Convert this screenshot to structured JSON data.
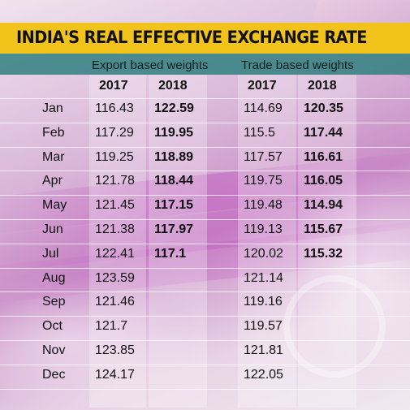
{
  "chart_data": {
    "type": "table",
    "title": "INDIA'S REAL EFFECTIVE EXCHANGE RATE",
    "groups": [
      {
        "name": "Export based weights",
        "years": [
          "2017",
          "2018"
        ]
      },
      {
        "name": "Trade based weights",
        "years": [
          "2017",
          "2018"
        ]
      }
    ],
    "rows": [
      {
        "month": "Jan",
        "export_2017": "116.43",
        "export_2018": "122.59",
        "trade_2017": "114.69",
        "trade_2018": "120.35"
      },
      {
        "month": "Feb",
        "export_2017": "117.29",
        "export_2018": "119.95",
        "trade_2017": "115.5",
        "trade_2018": "117.44"
      },
      {
        "month": "Mar",
        "export_2017": "119.25",
        "export_2018": "118.89",
        "trade_2017": "117.57",
        "trade_2018": "116.61"
      },
      {
        "month": "Apr",
        "export_2017": "121.78",
        "export_2018": "118.44",
        "trade_2017": "119.75",
        "trade_2018": "116.05"
      },
      {
        "month": "May",
        "export_2017": "121.45",
        "export_2018": "117.15",
        "trade_2017": "119.48",
        "trade_2018": "114.94"
      },
      {
        "month": "Jun",
        "export_2017": "121.38",
        "export_2018": "117.97",
        "trade_2017": "119.13",
        "trade_2018": "115.67"
      },
      {
        "month": "Jul",
        "export_2017": "122.41",
        "export_2018": "117.1",
        "trade_2017": "120.02",
        "trade_2018": "115.32"
      },
      {
        "month": "Aug",
        "export_2017": "123.59",
        "export_2018": "",
        "trade_2017": "121.14",
        "trade_2018": ""
      },
      {
        "month": "Sep",
        "export_2017": "121.46",
        "export_2018": "",
        "trade_2017": "119.16",
        "trade_2018": ""
      },
      {
        "month": "Oct",
        "export_2017": "121.7",
        "export_2018": "",
        "trade_2017": "119.57",
        "trade_2018": ""
      },
      {
        "month": "Nov",
        "export_2017": "123.85",
        "export_2018": "",
        "trade_2017": "121.81",
        "trade_2018": ""
      },
      {
        "month": "Dec",
        "export_2017": "124.17",
        "export_2018": "",
        "trade_2017": "122.05",
        "trade_2018": ""
      }
    ]
  },
  "colors": {
    "title_bar": "#f2c31a",
    "header_bar": "#308080"
  }
}
